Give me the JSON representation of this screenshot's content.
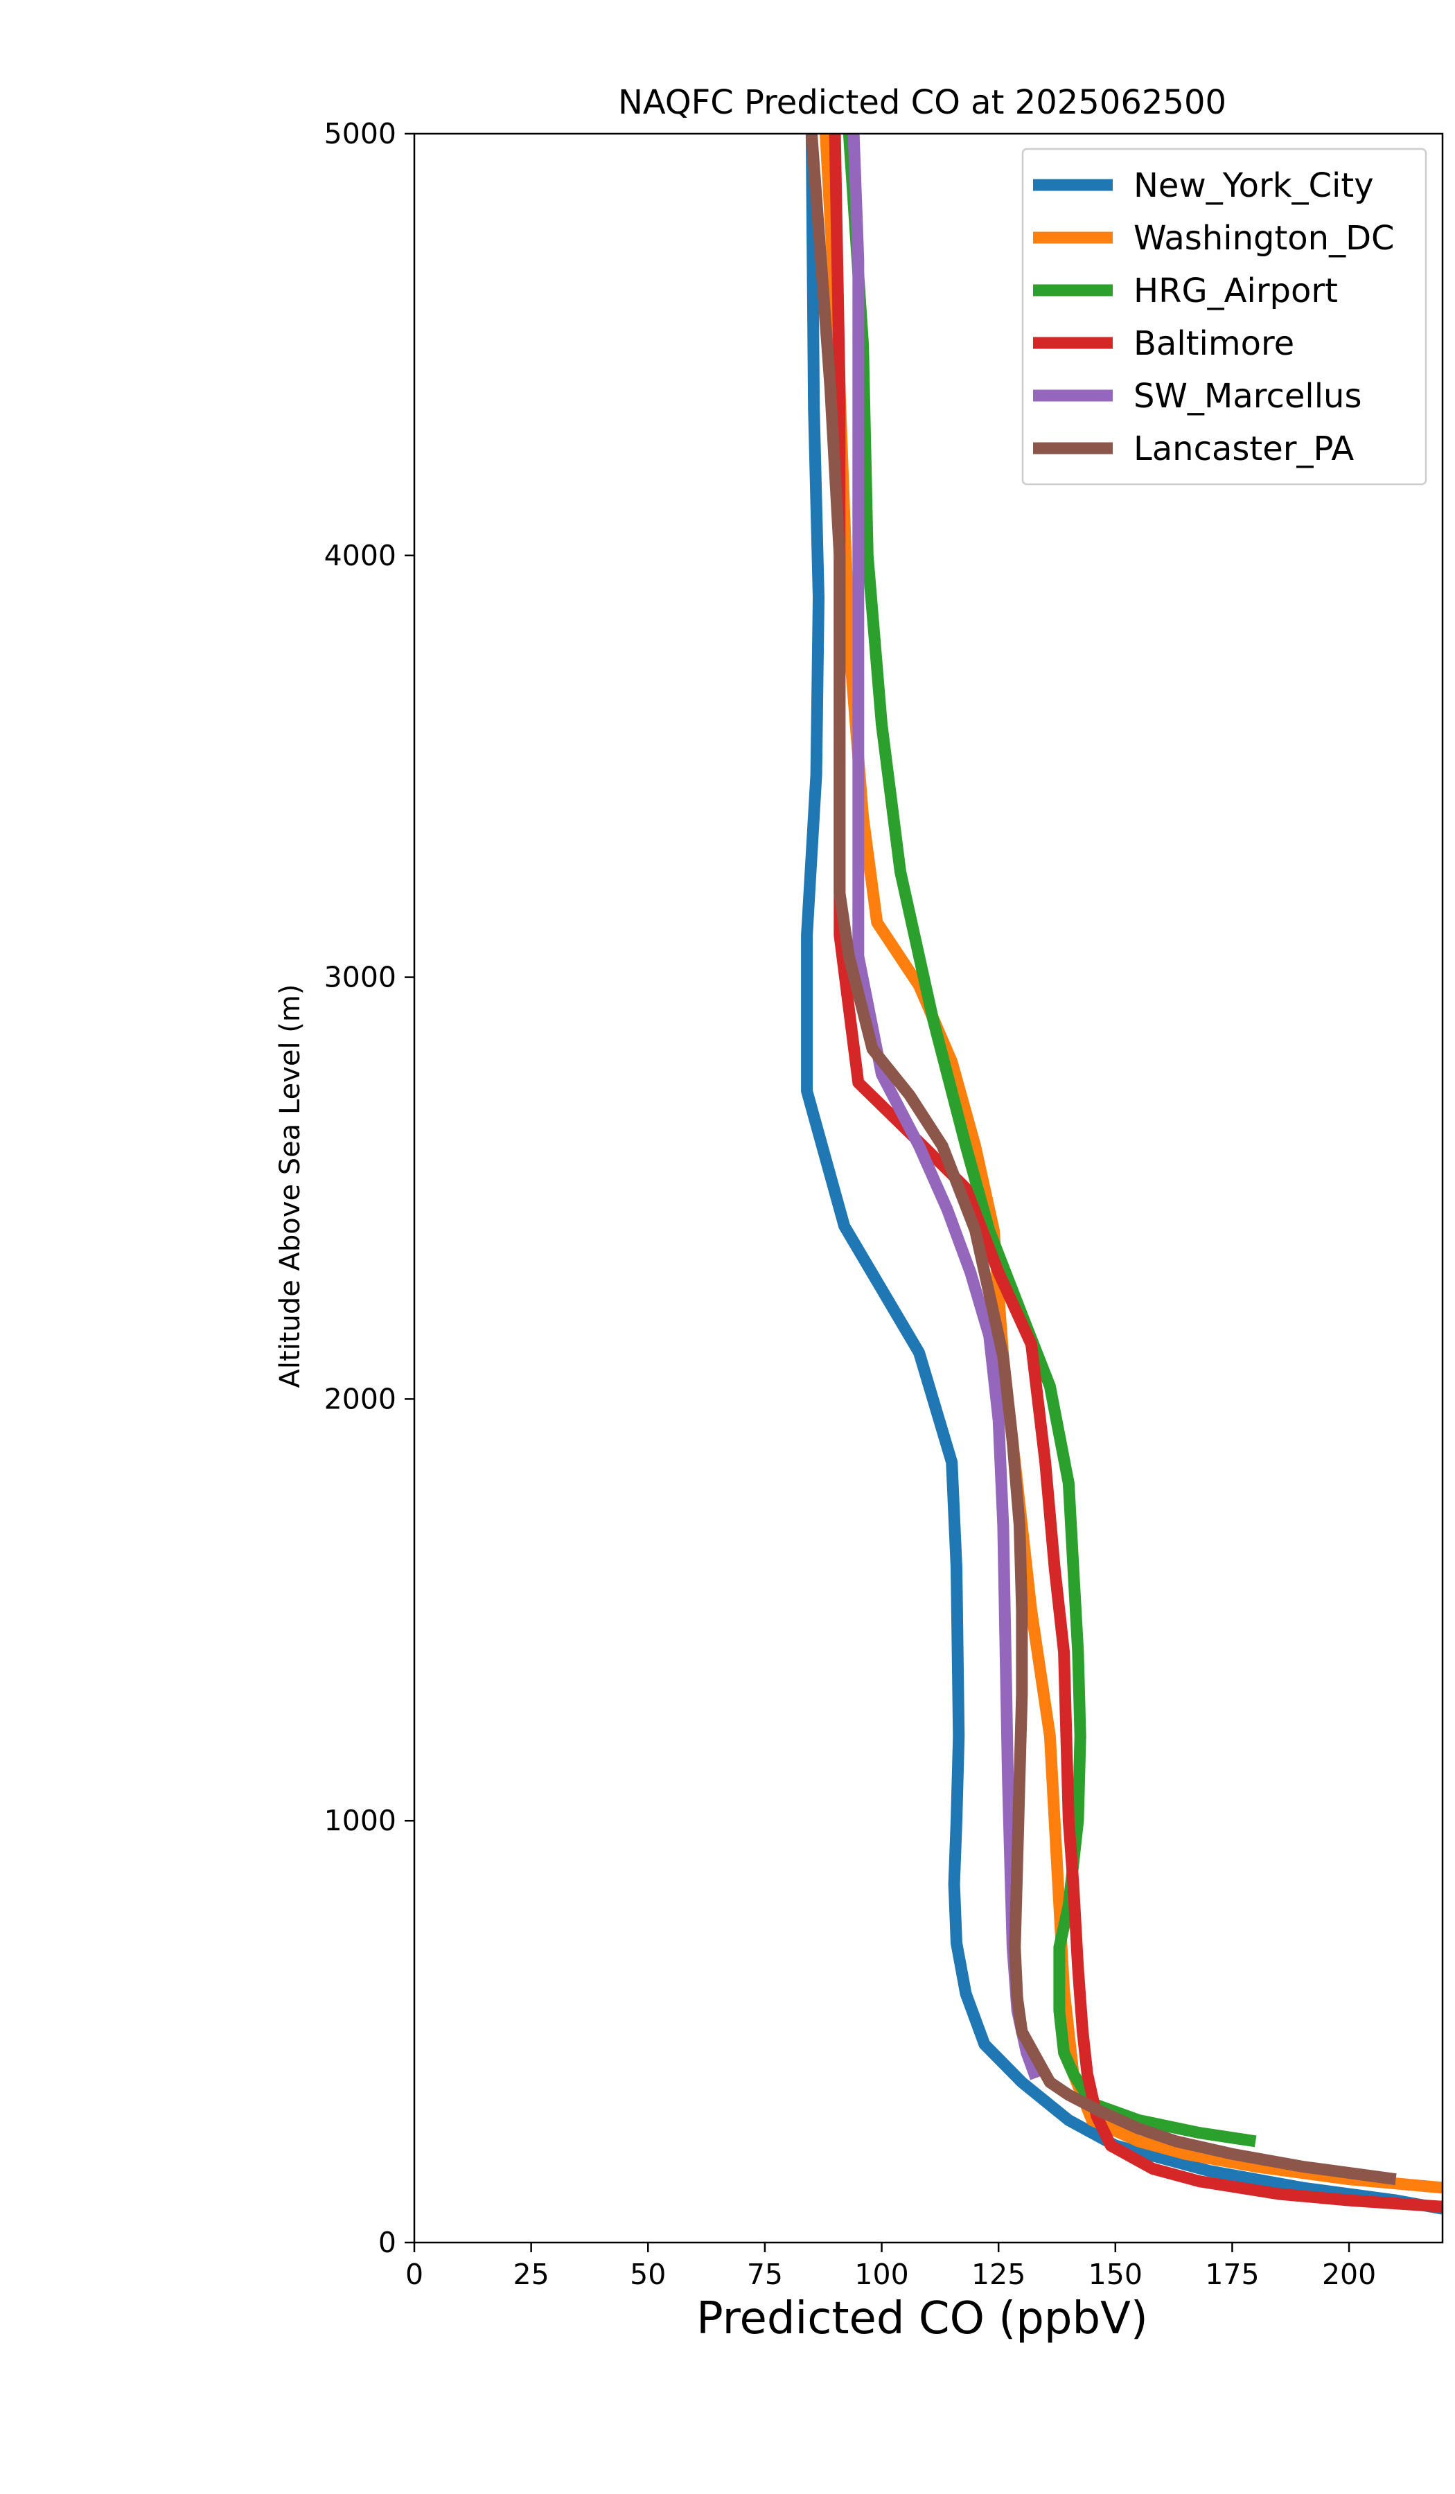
{
  "chart_data": {
    "type": "line",
    "title": "NAQFC Predicted CO at 2025062500",
    "xlabel": "Predicted CO (ppbV)",
    "ylabel": "Altitude Above Sea Level (m)",
    "xlim": [
      0,
      220
    ],
    "ylim": [
      0,
      5000
    ],
    "xticks": [
      0,
      25,
      50,
      75,
      100,
      125,
      150,
      175,
      200
    ],
    "yticks": [
      0,
      1000,
      2000,
      3000,
      4000,
      5000
    ],
    "grid": false,
    "legend_position": "top-right",
    "series": [
      {
        "name": "New_York_City",
        "color": "#1f77b4",
        "points": [
          [
            220,
            80
          ],
          [
            210,
            100
          ],
          [
            190,
            130
          ],
          [
            170,
            170
          ],
          [
            150,
            230
          ],
          [
            140,
            290
          ],
          [
            130,
            380
          ],
          [
            122,
            470
          ],
          [
            118,
            590
          ],
          [
            116,
            710
          ],
          [
            115.5,
            850
          ],
          [
            116,
            1000
          ],
          [
            116.5,
            1200
          ],
          [
            116,
            1600
          ],
          [
            115,
            1850
          ],
          [
            108,
            2110
          ],
          [
            92,
            2410
          ],
          [
            84,
            2730
          ],
          [
            84,
            3100
          ],
          [
            86,
            3480
          ],
          [
            86.5,
            3900
          ],
          [
            85.5,
            4350
          ],
          [
            85,
            5000
          ]
        ]
      },
      {
        "name": "Washington_DC",
        "color": "#ff7f0e",
        "points": [
          [
            220,
            130
          ],
          [
            200,
            150
          ],
          [
            180,
            180
          ],
          [
            165,
            210
          ],
          [
            155,
            240
          ],
          [
            145,
            290
          ],
          [
            141,
            400
          ],
          [
            139,
            600
          ],
          [
            137,
            1000
          ],
          [
            136,
            1200
          ],
          [
            132,
            1500
          ],
          [
            129,
            1800
          ],
          [
            126,
            2100
          ],
          [
            124,
            2400
          ],
          [
            120,
            2600
          ],
          [
            115,
            2800
          ],
          [
            108,
            2980
          ],
          [
            99,
            3130
          ],
          [
            96,
            3380
          ],
          [
            93,
            3800
          ],
          [
            91,
            4400
          ],
          [
            88,
            5000
          ]
        ]
      },
      {
        "name": "HRG_Airport",
        "color": "#2ca02c",
        "points": [
          [
            180,
            240
          ],
          [
            168,
            260
          ],
          [
            155,
            290
          ],
          [
            145,
            330
          ],
          [
            141,
            400
          ],
          [
            139,
            450
          ],
          [
            138,
            550
          ],
          [
            138,
            700
          ],
          [
            140,
            800
          ],
          [
            142,
            1000
          ],
          [
            142.5,
            1200
          ],
          [
            142,
            1400
          ],
          [
            141,
            1600
          ],
          [
            140,
            1800
          ],
          [
            136,
            2030
          ],
          [
            130,
            2200
          ],
          [
            123,
            2400
          ],
          [
            118,
            2600
          ],
          [
            111,
            2900
          ],
          [
            104,
            3250
          ],
          [
            100,
            3600
          ],
          [
            97,
            4000
          ],
          [
            96,
            4500
          ],
          [
            93,
            5000
          ]
        ]
      },
      {
        "name": "Baltimore",
        "color": "#d62728",
        "points": [
          [
            220,
            85
          ],
          [
            200,
            100
          ],
          [
            185,
            115
          ],
          [
            168,
            145
          ],
          [
            158,
            175
          ],
          [
            149,
            230
          ],
          [
            146,
            300
          ],
          [
            144,
            400
          ],
          [
            143,
            500
          ],
          [
            142,
            650
          ],
          [
            141,
            850
          ],
          [
            140,
            1000
          ],
          [
            139,
            1400
          ],
          [
            137,
            1600
          ],
          [
            135,
            1850
          ],
          [
            132,
            2130
          ],
          [
            125,
            2300
          ],
          [
            118,
            2500
          ],
          [
            107,
            2620
          ],
          [
            95,
            2750
          ],
          [
            91,
            3100
          ],
          [
            91,
            3500
          ],
          [
            91,
            4000
          ],
          [
            91,
            4400
          ],
          [
            90,
            5000
          ]
        ]
      },
      {
        "name": "SW_Marcellus",
        "color": "#9467bd",
        "points": [
          [
            133,
            390
          ],
          [
            131,
            450
          ],
          [
            129,
            550
          ],
          [
            128,
            700
          ],
          [
            127.5,
            900
          ],
          [
            127,
            1100
          ],
          [
            126.5,
            1400
          ],
          [
            126,
            1700
          ],
          [
            125,
            1950
          ],
          [
            123,
            2150
          ],
          [
            119,
            2300
          ],
          [
            114,
            2450
          ],
          [
            108,
            2600
          ],
          [
            100,
            2770
          ],
          [
            95,
            3050
          ],
          [
            95,
            3500
          ],
          [
            95,
            4000
          ],
          [
            95,
            4400
          ],
          [
            95,
            4700
          ],
          [
            94,
            5000
          ]
        ]
      },
      {
        "name": "Lancaster_PA",
        "color": "#8c564b",
        "points": [
          [
            210,
            150
          ],
          [
            190,
            180
          ],
          [
            175,
            210
          ],
          [
            163,
            240
          ],
          [
            155,
            270
          ],
          [
            147,
            310
          ],
          [
            140,
            350
          ],
          [
            136,
            380
          ],
          [
            133,
            440
          ],
          [
            130,
            500
          ],
          [
            129,
            580
          ],
          [
            128.5,
            700
          ],
          [
            129,
            900
          ],
          [
            129.5,
            1100
          ],
          [
            130,
            1300
          ],
          [
            130,
            1500
          ],
          [
            129.5,
            1700
          ],
          [
            128,
            1900
          ],
          [
            126,
            2100
          ],
          [
            120,
            2400
          ],
          [
            113,
            2600
          ],
          [
            106,
            2720
          ],
          [
            98,
            2830
          ],
          [
            93,
            3050
          ],
          [
            91,
            3200
          ],
          [
            91,
            3500
          ],
          [
            91,
            4000
          ],
          [
            89,
            4400
          ],
          [
            87,
            4700
          ],
          [
            85,
            5000
          ]
        ]
      }
    ]
  }
}
